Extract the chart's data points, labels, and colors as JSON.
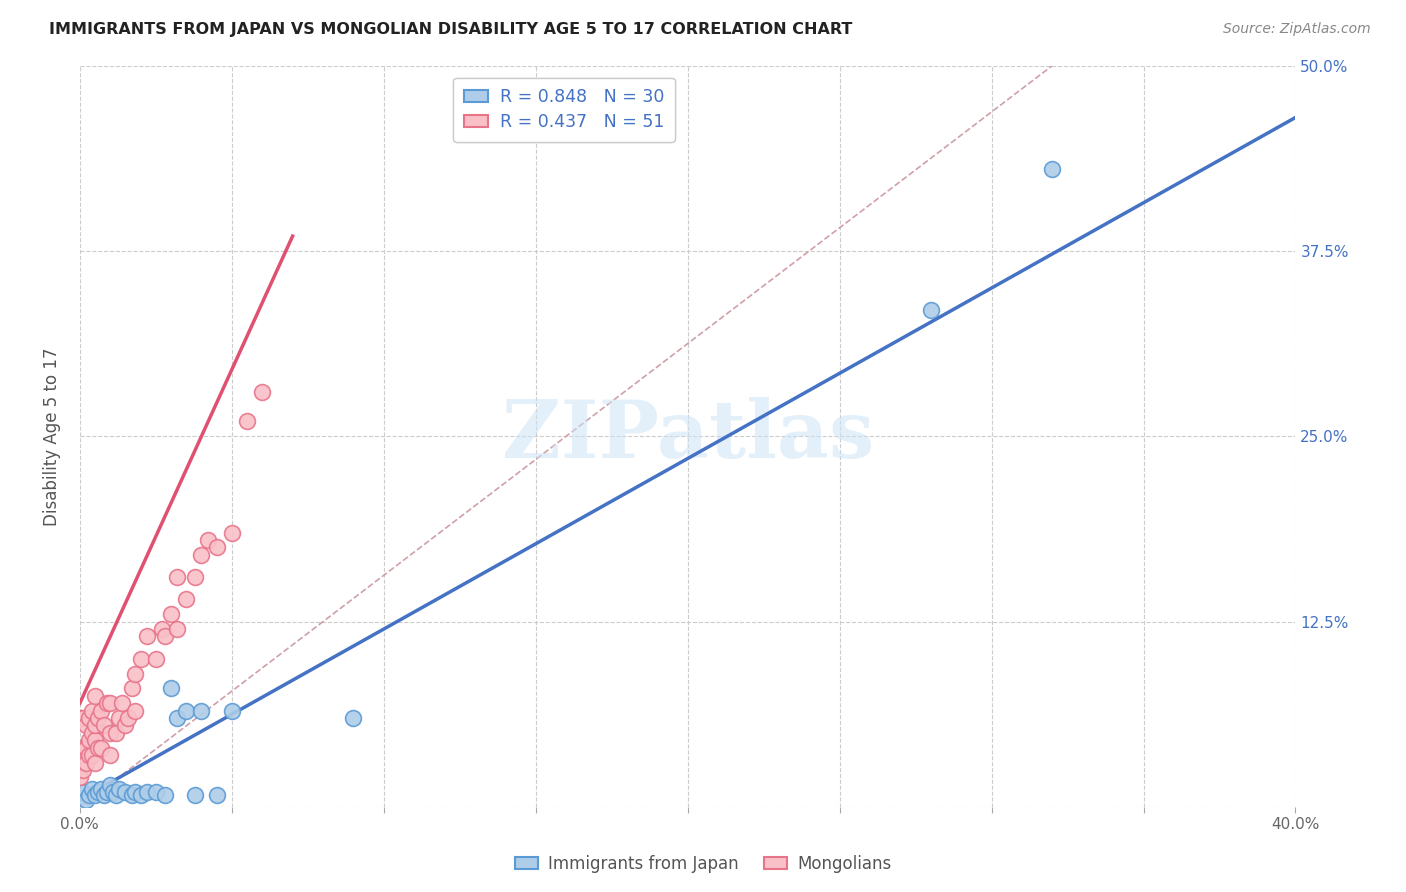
{
  "title": "IMMIGRANTS FROM JAPAN VS MONGOLIAN DISABILITY AGE 5 TO 17 CORRELATION CHART",
  "source": "Source: ZipAtlas.com",
  "ylabel": "Disability Age 5 to 17",
  "xlim": [
    0.0,
    0.4
  ],
  "ylim": [
    0.0,
    0.5
  ],
  "xtick_vals": [
    0.0,
    0.05,
    0.1,
    0.15,
    0.2,
    0.25,
    0.3,
    0.35,
    0.4
  ],
  "xtick_labels": [
    "0.0%",
    "",
    "",
    "",
    "",
    "",
    "",
    "",
    "40.0%"
  ],
  "ytick_vals": [
    0.0,
    0.125,
    0.25,
    0.375,
    0.5
  ],
  "ytick_labels_right": [
    "",
    "12.5%",
    "25.0%",
    "37.5%",
    "50.0%"
  ],
  "watermark": "ZIPatlas",
  "legend_R1": "0.848",
  "legend_N1": "30",
  "legend_R2": "0.437",
  "legend_N2": "51",
  "color_japan_fill": "#aecde8",
  "color_japan_edge": "#5b9bd5",
  "color_mongolia_fill": "#f9c0c8",
  "color_mongolia_edge": "#e8748a",
  "color_line_japan": "#4472c4",
  "color_line_mongolia": "#e05070",
  "color_line_ref": "#d0a0a8",
  "japan_x": [
    0.001,
    0.002,
    0.003,
    0.004,
    0.005,
    0.006,
    0.007,
    0.008,
    0.009,
    0.01,
    0.011,
    0.012,
    0.013,
    0.015,
    0.017,
    0.018,
    0.02,
    0.022,
    0.025,
    0.028,
    0.03,
    0.032,
    0.035,
    0.038,
    0.04,
    0.045,
    0.05,
    0.09,
    0.28,
    0.32
  ],
  "japan_y": [
    0.01,
    0.005,
    0.008,
    0.012,
    0.008,
    0.01,
    0.012,
    0.008,
    0.01,
    0.015,
    0.01,
    0.008,
    0.012,
    0.01,
    0.008,
    0.01,
    0.008,
    0.01,
    0.01,
    0.008,
    0.08,
    0.06,
    0.065,
    0.008,
    0.065,
    0.008,
    0.065,
    0.06,
    0.335,
    0.43
  ],
  "mongolia_x": [
    0.0,
    0.0,
    0.001,
    0.001,
    0.001,
    0.002,
    0.002,
    0.002,
    0.003,
    0.003,
    0.003,
    0.004,
    0.004,
    0.004,
    0.005,
    0.005,
    0.005,
    0.005,
    0.006,
    0.006,
    0.007,
    0.007,
    0.008,
    0.009,
    0.01,
    0.01,
    0.01,
    0.012,
    0.013,
    0.014,
    0.015,
    0.016,
    0.017,
    0.018,
    0.018,
    0.02,
    0.022,
    0.025,
    0.027,
    0.028,
    0.03,
    0.032,
    0.032,
    0.035,
    0.038,
    0.04,
    0.042,
    0.045,
    0.05,
    0.055,
    0.06
  ],
  "mongolia_y": [
    0.02,
    0.06,
    0.025,
    0.04,
    0.06,
    0.03,
    0.04,
    0.055,
    0.035,
    0.045,
    0.06,
    0.035,
    0.05,
    0.065,
    0.03,
    0.045,
    0.055,
    0.075,
    0.04,
    0.06,
    0.04,
    0.065,
    0.055,
    0.07,
    0.035,
    0.05,
    0.07,
    0.05,
    0.06,
    0.07,
    0.055,
    0.06,
    0.08,
    0.065,
    0.09,
    0.1,
    0.115,
    0.1,
    0.12,
    0.115,
    0.13,
    0.12,
    0.155,
    0.14,
    0.155,
    0.17,
    0.18,
    0.175,
    0.185,
    0.26,
    0.28
  ],
  "japan_line_x": [
    0.0,
    0.4
  ],
  "japan_line_y": [
    0.005,
    0.465
  ],
  "mongolia_line_x": [
    0.0,
    0.07
  ],
  "mongolia_line_y": [
    0.07,
    0.385
  ],
  "ref_line_x": [
    0.0,
    0.32
  ],
  "ref_line_y": [
    0.0,
    0.5
  ]
}
